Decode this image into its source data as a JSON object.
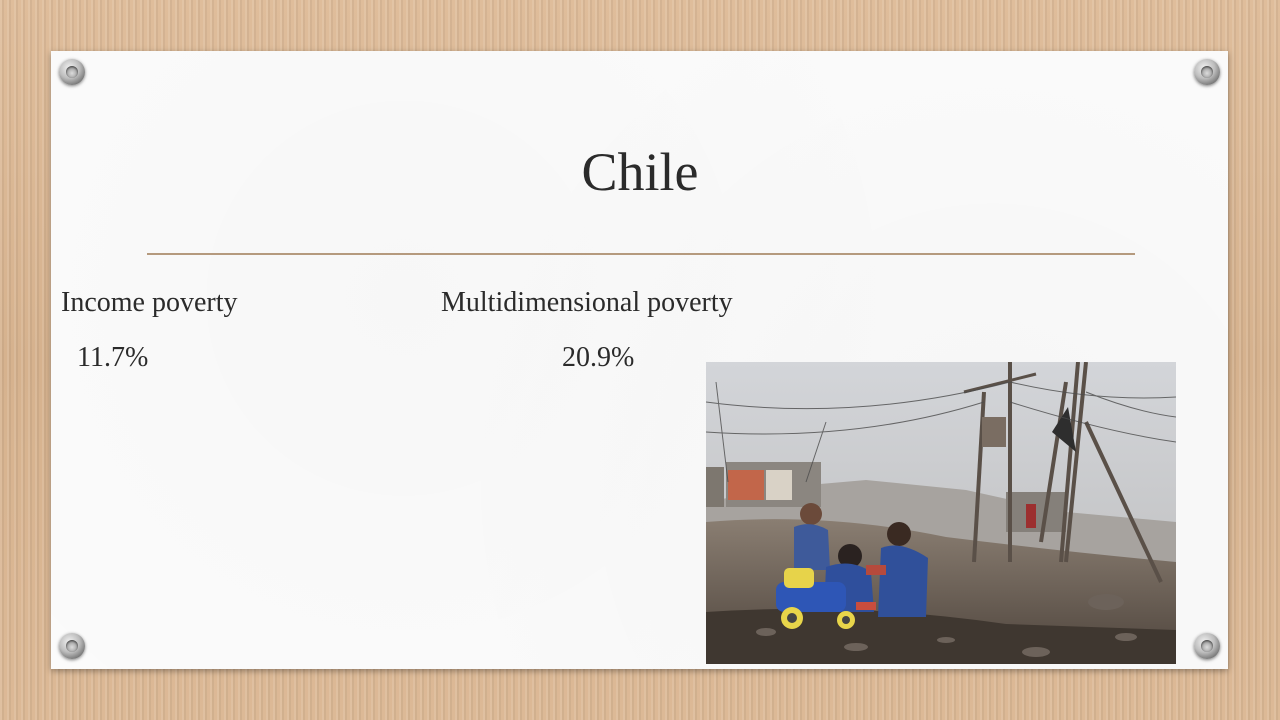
{
  "slide": {
    "title": "Chile",
    "columns": [
      {
        "heading": "Income poverty",
        "value": "11.7%"
      },
      {
        "heading": "Multidimensional poverty",
        "value": "20.9%"
      }
    ]
  },
  "colors": {
    "background": "#dcb996",
    "paper": "#fbfbfb",
    "divider": "#b59a7e",
    "text": "#2b2b2b"
  },
  "photo": {
    "icon": "photo-children-playing-in-shantytown"
  }
}
